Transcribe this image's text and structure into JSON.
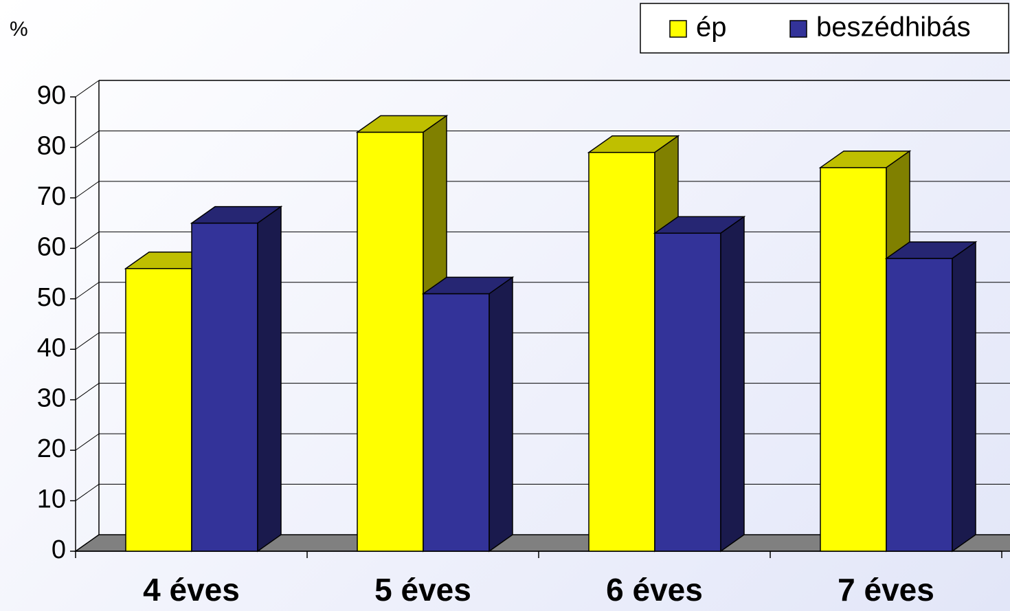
{
  "chart_data": {
    "type": "bar",
    "y_label": "%",
    "categories": [
      "4 éves",
      "5 éves",
      "6 éves",
      "7 éves"
    ],
    "series": [
      {
        "name": "ép",
        "color": "#ffff00",
        "values": [
          56,
          83,
          79,
          76
        ]
      },
      {
        "name": "beszédhibás",
        "color": "#333399",
        "values": [
          65,
          51,
          63,
          58
        ]
      }
    ],
    "ylim": [
      0,
      90
    ],
    "yticks": [
      0,
      10,
      20,
      30,
      40,
      50,
      60,
      70,
      80,
      90
    ],
    "grid": true,
    "legend": "top-right"
  }
}
